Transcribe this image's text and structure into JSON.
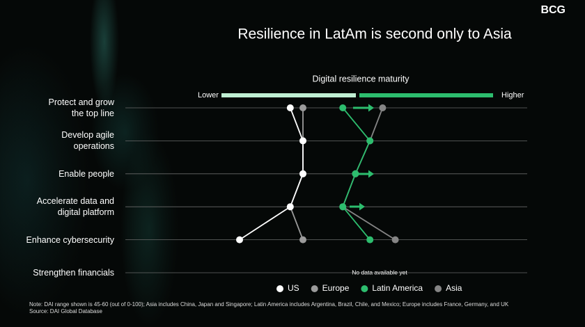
{
  "logo": "BCG",
  "chart_data": {
    "type": "dot-line",
    "title": "Resilience in LatAm is second only to Asia",
    "subtitle": "Digital resilience maturity",
    "scale_low_label": "Lower",
    "scale_high_label": "Higher",
    "xlim": [
      45,
      60
    ],
    "categories": [
      "Protect and grow\nthe top line",
      "Develop agile\noperations",
      "Enable people",
      "Accelerate data and\ndigital platform",
      "Enhance cybersecurity",
      "Strengthen financials"
    ],
    "annotation": "No data available yet",
    "series": [
      {
        "name": "Europe",
        "color": "#9b9b9b",
        "values": [
          49.5,
          49.5,
          49.5,
          48.8,
          49.5,
          null
        ]
      },
      {
        "name": "Asia",
        "color": "#858585",
        "values": [
          53.9,
          53.2,
          52.4,
          51.7,
          54.6,
          null
        ]
      },
      {
        "name": "Latin America",
        "color": "#2dbd6e",
        "values": [
          51.7,
          53.2,
          52.4,
          51.7,
          53.2,
          null
        ]
      },
      {
        "name": "US",
        "color": "#ffffff",
        "values": [
          48.8,
          49.5,
          49.5,
          48.8,
          46.0,
          null
        ]
      }
    ],
    "legend_order": [
      3,
      0,
      2,
      1
    ],
    "note": "Note: DAI range shown is 45-60 (out of 0-100); Asia includes China, Japan and Singapore; Latin America includes Argentina, Brazil, Chile, and Mexico; Europe includes France, Germany, and UK",
    "source": "Source: DAI Global Database"
  }
}
